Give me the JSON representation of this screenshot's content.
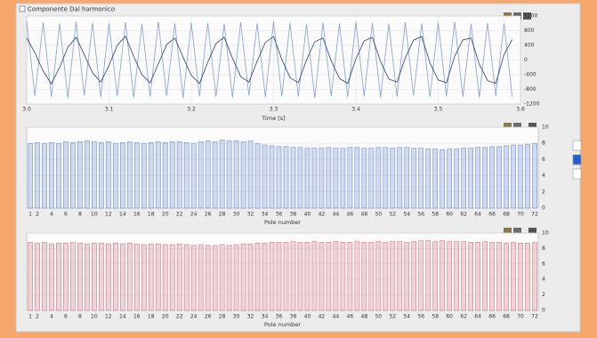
{
  "window_title": "Componente Dal harmonico",
  "chart_data": [
    {
      "type": "line",
      "xlabel": "Time [s]",
      "x": [
        3,
        3.01,
        3.02,
        3.03,
        3.04,
        3.05,
        3.06,
        3.07,
        3.08,
        3.09,
        3.1,
        3.11,
        3.12,
        3.13,
        3.14,
        3.15,
        3.16,
        3.17,
        3.18,
        3.19,
        3.2,
        3.21,
        3.22,
        3.23,
        3.24,
        3.25,
        3.26,
        3.27,
        3.28,
        3.29,
        3.3,
        3.31,
        3.32,
        3.33,
        3.34,
        3.35,
        3.36,
        3.37,
        3.38,
        3.39,
        3.4,
        3.41,
        3.42,
        3.43,
        3.44,
        3.45,
        3.46,
        3.47,
        3.48,
        3.49,
        3.5,
        3.51,
        3.52,
        3.53,
        3.54,
        3.55,
        3.56,
        3.57,
        3.58,
        3.59
      ],
      "xlim": [
        3,
        3.6
      ],
      "xticks": [
        {
          "value": 3,
          "label": "3.0"
        },
        3.1,
        3.2,
        3.3,
        3.4,
        3.5,
        3.6
      ],
      "ylim": [
        -1200,
        1200
      ],
      "yticks": [
        -1200,
        -800,
        -400,
        0,
        400,
        800,
        1200
      ],
      "grid": true,
      "series": [
        {
          "color": "#7f9fd8",
          "values": [
            1050,
            -980,
            1020,
            -1000,
            990,
            -1030,
            1040,
            -970,
            1010,
            -1010,
            1000,
            -990,
            1030,
            -1020,
            980,
            -1000,
            1040,
            -980,
            1000,
            -1030,
            1020,
            -990,
            1010,
            -1000,
            990,
            -1020,
            1030,
            -970,
            1000,
            -1010,
            1050,
            -990,
            1010,
            -1000,
            980,
            -1030,
            1020,
            -980,
            1000,
            -1010,
            1040,
            -990,
            1010,
            -1020,
            990,
            -1000,
            1030,
            -970,
            1000,
            -1010,
            1020,
            -990,
            1040,
            -1000,
            980,
            -1020,
            1010,
            -980,
            1000,
            -1010
          ]
        },
        {
          "color": "#2a3f7a",
          "values": [
            600,
            200,
            -300,
            -650,
            -200,
            350,
            620,
            150,
            -350,
            -600,
            -150,
            400,
            650,
            100,
            -400,
            -620,
            -100,
            420,
            600,
            80,
            -420,
            -640,
            -60,
            450,
            620,
            50,
            -450,
            -600,
            -30,
            480,
            640,
            20,
            -480,
            -620,
            0,
            500,
            600,
            -20,
            -500,
            -640,
            30,
            520,
            620,
            -40,
            -520,
            -600,
            60,
            540,
            640,
            -80,
            -540,
            -620,
            100,
            550,
            600,
            -120,
            -560,
            -640,
            150,
            560
          ]
        }
      ]
    },
    {
      "type": "bar",
      "xlabel": "Pole number",
      "color": "#6f8fcf",
      "categories": [
        1,
        2,
        null,
        4,
        null,
        6,
        null,
        8,
        null,
        10,
        null,
        12,
        null,
        14,
        null,
        16,
        null,
        18,
        null,
        20,
        null,
        22,
        null,
        24,
        null,
        26,
        null,
        28,
        null,
        30,
        null,
        32,
        null,
        34,
        null,
        36,
        null,
        38,
        null,
        40,
        null,
        42,
        null,
        44,
        null,
        46,
        null,
        48,
        null,
        50,
        null,
        52,
        null,
        54,
        null,
        56,
        null,
        58,
        null,
        60,
        null,
        62,
        null,
        64,
        null,
        66,
        null,
        68,
        null,
        70,
        null,
        72
      ],
      "values": [
        8.0,
        8.1,
        8.0,
        8.1,
        8.0,
        8.2,
        8.1,
        8.2,
        8.3,
        8.2,
        8.1,
        8.2,
        8.0,
        8.1,
        8.2,
        8.1,
        8.0,
        8.1,
        8.2,
        8.1,
        8.2,
        8.2,
        8.1,
        8.0,
        8.2,
        8.3,
        8.2,
        8.4,
        8.3,
        8.3,
        8.2,
        8.3,
        8.0,
        7.8,
        7.7,
        7.6,
        7.6,
        7.5,
        7.5,
        7.4,
        7.4,
        7.4,
        7.5,
        7.4,
        7.4,
        7.5,
        7.5,
        7.4,
        7.4,
        7.5,
        7.5,
        7.4,
        7.5,
        7.5,
        7.4,
        7.4,
        7.3,
        7.3,
        7.2,
        7.3,
        7.3,
        7.4,
        7.4,
        7.5,
        7.5,
        7.6,
        7.6,
        7.7,
        7.8,
        7.8,
        7.9,
        8.0
      ],
      "ylim": [
        0,
        10
      ],
      "yticks": [
        0,
        2,
        4,
        6,
        8,
        10
      ],
      "grid": true
    },
    {
      "type": "bar",
      "xlabel": "Pole number",
      "color": "#d07a86",
      "categories": [
        1,
        2,
        null,
        4,
        null,
        6,
        null,
        8,
        null,
        10,
        null,
        12,
        null,
        14,
        null,
        16,
        null,
        18,
        null,
        20,
        null,
        22,
        null,
        24,
        null,
        26,
        null,
        28,
        null,
        30,
        null,
        32,
        null,
        34,
        null,
        36,
        null,
        38,
        null,
        40,
        null,
        42,
        null,
        44,
        null,
        46,
        null,
        48,
        null,
        50,
        null,
        52,
        null,
        54,
        null,
        56,
        null,
        58,
        null,
        60,
        null,
        62,
        null,
        64,
        null,
        66,
        null,
        68,
        null,
        70,
        null,
        72
      ],
      "values": [
        8.8,
        8.7,
        8.8,
        8.6,
        8.7,
        8.7,
        8.8,
        8.7,
        8.6,
        8.7,
        8.7,
        8.6,
        8.7,
        8.6,
        8.7,
        8.6,
        8.5,
        8.6,
        8.6,
        8.5,
        8.5,
        8.6,
        8.5,
        8.4,
        8.5,
        8.4,
        8.4,
        8.5,
        8.4,
        8.5,
        8.6,
        8.6,
        8.7,
        8.7,
        8.8,
        8.8,
        8.8,
        8.9,
        8.8,
        8.8,
        8.9,
        8.8,
        8.8,
        8.9,
        8.8,
        8.8,
        8.9,
        8.8,
        8.8,
        8.9,
        8.8,
        8.9,
        8.9,
        8.8,
        8.9,
        9.0,
        9.0,
        8.9,
        9.0,
        8.9,
        8.9,
        8.9,
        8.8,
        8.8,
        8.9,
        8.8,
        8.8,
        8.7,
        8.8,
        8.7,
        8.7,
        8.8
      ],
      "ylim": [
        0,
        10
      ],
      "yticks": [
        0,
        2,
        4,
        6,
        8,
        10
      ],
      "grid": true
    }
  ]
}
